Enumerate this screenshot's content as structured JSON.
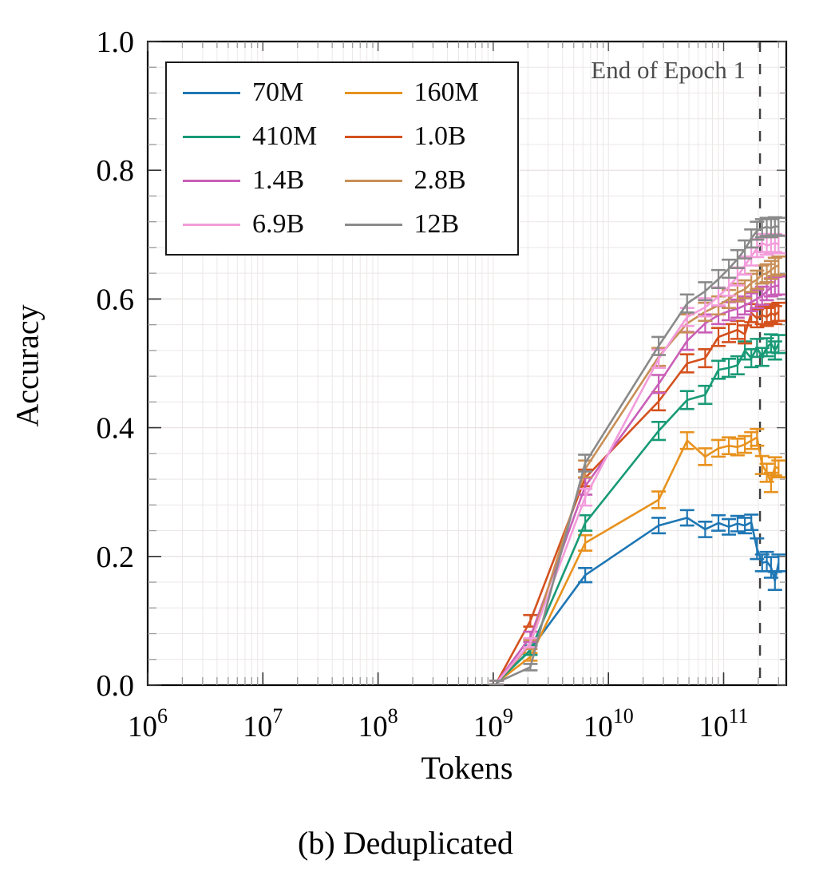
{
  "figure": {
    "ylabel": "Accuracy",
    "xlabel": "Tokens",
    "caption": "(b) Deduplicated",
    "annotation": "End of Epoch 1"
  },
  "chart_data": {
    "type": "line",
    "title": "",
    "xlabel": "Tokens",
    "ylabel": "Accuracy",
    "x_scale": "log",
    "xlim": [
      1000000,
      350000000000
    ],
    "ylim": [
      0.0,
      1.0
    ],
    "x_tick_exponents": [
      6,
      7,
      8,
      9,
      10,
      11
    ],
    "y_ticks": [
      0.0,
      0.2,
      0.4,
      0.6,
      0.8,
      1.0
    ],
    "y_minor_step": 0.04,
    "grid": true,
    "legend_position": "upper left",
    "legend_columns": 2,
    "error_bars": true,
    "vline": {
      "x": 207000000000,
      "label": "End of Epoch 1",
      "style": "dashed",
      "color": "#3f3f3f"
    },
    "x_tokens": [
      1070000000.0,
      2100000000.0,
      6290000000.0,
      27300000000.0,
      48200000000.0,
      69200000000.0,
      90200000000.0,
      111000000000.0,
      132000000000.0,
      153000000000.0,
      174000000000.0,
      195000000000.0,
      216000000000.0,
      237000000000.0,
      258000000000.0,
      279000000000.0,
      300000000000.0
    ],
    "series": [
      {
        "name": "70M",
        "color": "#1f77b4",
        "values": [
          0.004,
          0.055,
          0.171,
          0.248,
          0.26,
          0.242,
          0.252,
          0.246,
          0.251,
          0.248,
          0.253,
          0.212,
          0.19,
          0.192,
          0.183,
          0.162,
          0.19
        ],
        "errors": [
          0.003,
          0.007,
          0.011,
          0.012,
          0.012,
          0.012,
          0.012,
          0.012,
          0.012,
          0.012,
          0.012,
          0.016,
          0.013,
          0.015,
          0.016,
          0.014,
          0.013
        ]
      },
      {
        "name": "160M",
        "color": "#e8921e",
        "values": [
          0.004,
          0.044,
          0.221,
          0.288,
          0.38,
          0.355,
          0.368,
          0.372,
          0.37,
          0.374,
          0.38,
          0.385,
          0.342,
          0.33,
          0.315,
          0.34,
          0.336
        ],
        "errors": [
          0.003,
          0.006,
          0.012,
          0.013,
          0.013,
          0.013,
          0.013,
          0.013,
          0.013,
          0.013,
          0.013,
          0.013,
          0.014,
          0.014,
          0.015,
          0.014,
          0.013
        ]
      },
      {
        "name": "410M",
        "color": "#189a76",
        "values": [
          0.004,
          0.054,
          0.252,
          0.395,
          0.443,
          0.451,
          0.49,
          0.493,
          0.497,
          0.52,
          0.508,
          0.524,
          0.51,
          0.525,
          0.531,
          0.52,
          0.53
        ],
        "errors": [
          0.003,
          0.007,
          0.012,
          0.014,
          0.014,
          0.014,
          0.014,
          0.014,
          0.014,
          0.014,
          0.014,
          0.014,
          0.014,
          0.014,
          0.014,
          0.014,
          0.014
        ]
      },
      {
        "name": "1.0B",
        "color": "#d4511e",
        "values": [
          0.004,
          0.1,
          0.322,
          0.441,
          0.5,
          0.508,
          0.541,
          0.547,
          0.552,
          0.545,
          0.578,
          0.57,
          0.575,
          0.572,
          0.578,
          0.575,
          0.58
        ],
        "errors": [
          0.003,
          0.009,
          0.013,
          0.014,
          0.014,
          0.014,
          0.014,
          0.014,
          0.014,
          0.014,
          0.014,
          0.014,
          0.014,
          0.014,
          0.014,
          0.014,
          0.014
        ]
      },
      {
        "name": "1.4B",
        "color": "#c95fb8",
        "values": [
          0.004,
          0.075,
          0.309,
          0.468,
          0.535,
          0.562,
          0.575,
          0.581,
          0.585,
          0.59,
          0.595,
          0.6,
          0.605,
          0.612,
          0.618,
          0.62,
          0.621
        ],
        "errors": [
          0.003,
          0.008,
          0.013,
          0.014,
          0.014,
          0.014,
          0.014,
          0.014,
          0.014,
          0.014,
          0.014,
          0.014,
          0.014,
          0.014,
          0.014,
          0.014,
          0.014
        ]
      },
      {
        "name": "2.8B",
        "color": "#c98f57",
        "values": [
          0.004,
          0.063,
          0.336,
          0.51,
          0.562,
          0.58,
          0.59,
          0.6,
          0.61,
          0.615,
          0.625,
          0.63,
          0.638,
          0.64,
          0.645,
          0.65,
          0.652
        ],
        "errors": [
          0.003,
          0.007,
          0.013,
          0.014,
          0.014,
          0.014,
          0.014,
          0.014,
          0.014,
          0.014,
          0.014,
          0.014,
          0.014,
          0.014,
          0.014,
          0.014,
          0.014
        ]
      },
      {
        "name": "6.9B",
        "color": "#f39cdb",
        "values": [
          0.004,
          0.066,
          0.292,
          0.507,
          0.572,
          0.587,
          0.604,
          0.619,
          0.635,
          0.652,
          0.666,
          0.679,
          0.687,
          0.683,
          0.685,
          0.687,
          0.685
        ],
        "errors": [
          0.003,
          0.007,
          0.013,
          0.014,
          0.014,
          0.014,
          0.014,
          0.014,
          0.014,
          0.014,
          0.014,
          0.014,
          0.014,
          0.014,
          0.014,
          0.014,
          0.014
        ]
      },
      {
        "name": "12B",
        "color": "#8a8a8a",
        "values": [
          0.004,
          0.028,
          0.345,
          0.527,
          0.593,
          0.612,
          0.631,
          0.647,
          0.662,
          0.677,
          0.694,
          0.706,
          0.71,
          0.712,
          0.71,
          0.713,
          0.712
        ],
        "errors": [
          0.003,
          0.005,
          0.013,
          0.014,
          0.014,
          0.014,
          0.014,
          0.014,
          0.014,
          0.014,
          0.014,
          0.014,
          0.014,
          0.014,
          0.014,
          0.014,
          0.014
        ]
      }
    ]
  }
}
